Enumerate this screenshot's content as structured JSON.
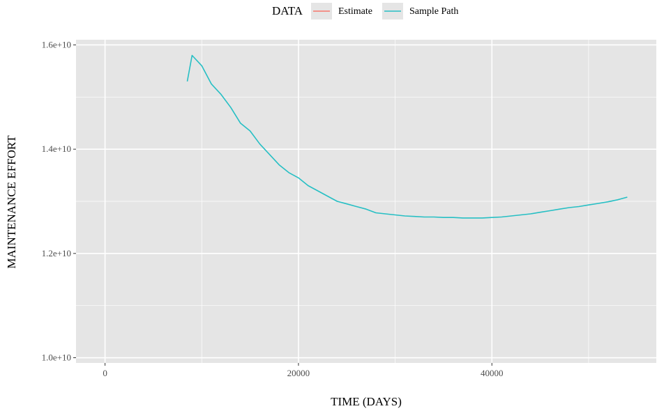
{
  "chart_data": {
    "type": "line",
    "xlabel": "TIME (DAYS)",
    "ylabel": "MAINTENANCE EFFORT",
    "xlim": [
      -3000,
      57000
    ],
    "ylim": [
      9900000000,
      16100000000
    ],
    "x_ticks": [
      0,
      20000,
      40000
    ],
    "x_tick_labels": [
      "0",
      "20000",
      "40000"
    ],
    "y_ticks": [
      10000000000,
      12000000000,
      14000000000,
      16000000000
    ],
    "y_tick_labels": [
      "1.0e+10",
      "1.2e+10",
      "1.4e+10",
      "1.6e+10"
    ],
    "grid": true,
    "legend": {
      "position": "top",
      "title": "DATA",
      "entries": [
        "Estimate",
        "Sample Path"
      ]
    },
    "series": [
      {
        "name": "Estimate",
        "color": "#F8766D",
        "x": [],
        "y": []
      },
      {
        "name": "Sample Path",
        "color": "#26BFC4",
        "x": [
          8500,
          9000,
          10000,
          11000,
          12000,
          13000,
          14000,
          15000,
          16000,
          17000,
          18000,
          19000,
          20000,
          21000,
          22000,
          23000,
          24000,
          25000,
          26000,
          27000,
          28000,
          29000,
          30000,
          31000,
          32000,
          33000,
          34000,
          35000,
          36000,
          37000,
          38000,
          39000,
          40000,
          41000,
          42000,
          43000,
          44000,
          45000,
          46000,
          47000,
          48000,
          49000,
          50000,
          51000,
          52000,
          53000,
          54000
        ],
        "y": [
          15300000000,
          15800000000,
          15600000000,
          15250000000,
          15050000000,
          14800000000,
          14500000000,
          14350000000,
          14100000000,
          13900000000,
          13700000000,
          13550000000,
          13450000000,
          13300000000,
          13200000000,
          13100000000,
          13000000000,
          12950000000,
          12900000000,
          12850000000,
          12780000000,
          12760000000,
          12740000000,
          12720000000,
          12710000000,
          12700000000,
          12700000000,
          12690000000,
          12690000000,
          12680000000,
          12680000000,
          12680000000,
          12690000000,
          12700000000,
          12720000000,
          12740000000,
          12760000000,
          12790000000,
          12820000000,
          12850000000,
          12880000000,
          12900000000,
          12930000000,
          12960000000,
          12990000000,
          13030000000,
          13080000000
        ]
      }
    ],
    "colors": {
      "panel_background": "#E5E5E5",
      "grid": "#FFFFFF"
    }
  }
}
